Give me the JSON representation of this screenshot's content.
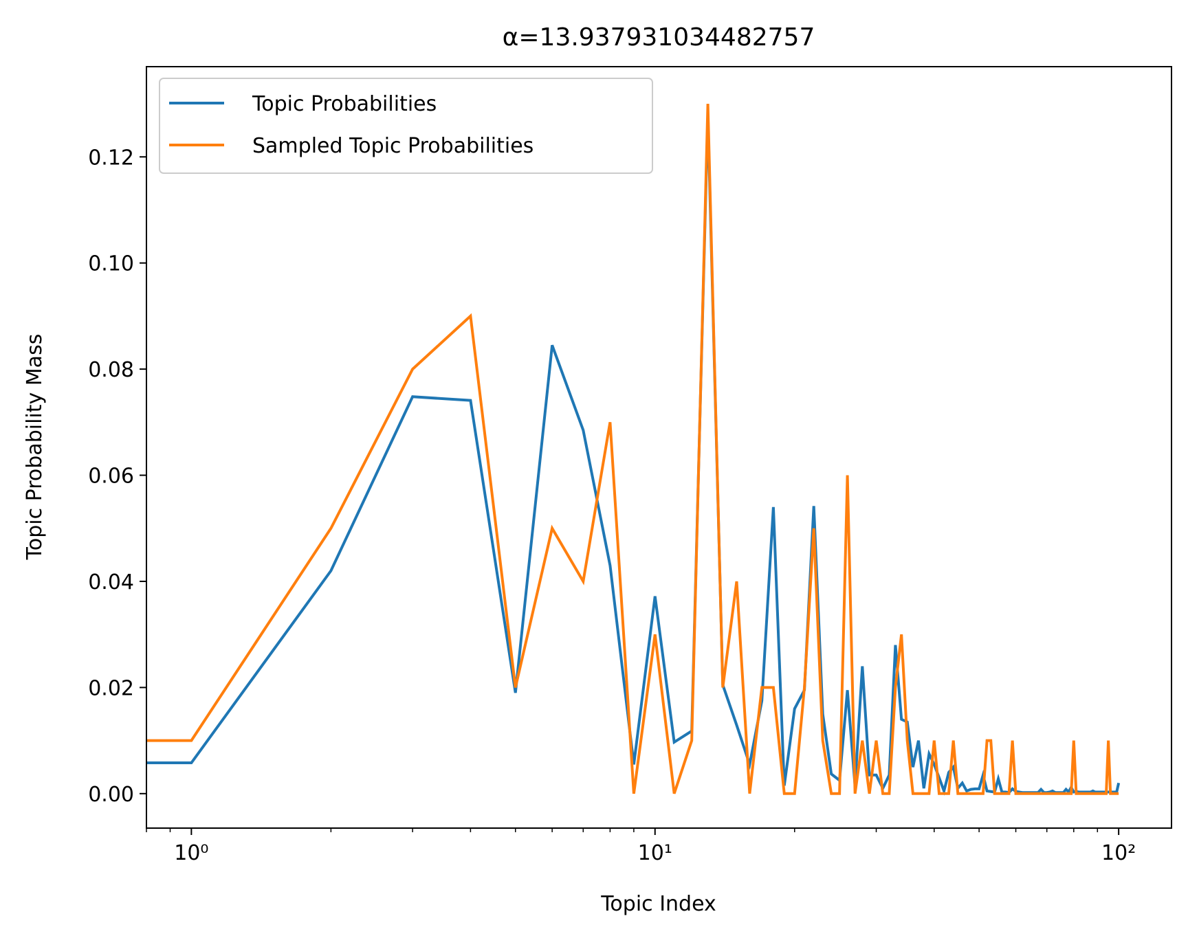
{
  "chart_data": {
    "type": "line",
    "title": "α=13.937931034482757",
    "xlabel": "Topic Index",
    "ylabel": "Topic Probability Mass",
    "xscale": "log",
    "xlim": [
      0.8,
      130
    ],
    "ylim": [
      -0.0065,
      0.137
    ],
    "x_ticks": [
      {
        "value": 1,
        "label": "10⁰"
      },
      {
        "value": 10,
        "label": "10¹"
      },
      {
        "value": 100,
        "label": "10²"
      }
    ],
    "y_ticks": [
      {
        "value": 0.0,
        "label": "0.00"
      },
      {
        "value": 0.02,
        "label": "0.02"
      },
      {
        "value": 0.04,
        "label": "0.04"
      },
      {
        "value": 0.06,
        "label": "0.06"
      },
      {
        "value": 0.08,
        "label": "0.08"
      },
      {
        "value": 0.1,
        "label": "0.10"
      },
      {
        "value": 0.12,
        "label": "0.12"
      }
    ],
    "grid": false,
    "legend_position": "upper-left",
    "series": [
      {
        "name": "Topic Probabilities",
        "color": "#1f77b4",
        "x": [
          0,
          1,
          2,
          3,
          4,
          5,
          6,
          7,
          8,
          9,
          10,
          11,
          12,
          13,
          14,
          15,
          16,
          17,
          18,
          19,
          20,
          21,
          22,
          23,
          24,
          25,
          26,
          27,
          28,
          29,
          30,
          31,
          32,
          33,
          34,
          35,
          36,
          37,
          38,
          39,
          40,
          41,
          42,
          43,
          44,
          45,
          46,
          47,
          48,
          49,
          50,
          51,
          52,
          53,
          54,
          55,
          56,
          57,
          58,
          59,
          60,
          61,
          62,
          63,
          64,
          65,
          66,
          67,
          68,
          69,
          70,
          71,
          72,
          73,
          74,
          75,
          76,
          77,
          78,
          79,
          80,
          81,
          82,
          83,
          84,
          85,
          86,
          87,
          88,
          89,
          90,
          91,
          92,
          93,
          94,
          95,
          96,
          97,
          98,
          99,
          100
        ],
        "values": [
          0.0058,
          0.0058,
          0.042,
          0.0748,
          0.0741,
          0.019,
          0.0845,
          0.0685,
          0.043,
          0.0055,
          0.0372,
          0.0097,
          0.0118,
          0.128,
          0.0205,
          0.0129,
          0.0055,
          0.0175,
          0.054,
          0.0015,
          0.016,
          0.0195,
          0.0542,
          0.015,
          0.0037,
          0.0025,
          0.0195,
          0.0015,
          0.024,
          0.0035,
          0.0035,
          0.001,
          0.0035,
          0.028,
          0.014,
          0.0135,
          0.005,
          0.01,
          0.001,
          0.0075,
          0.0055,
          0.003,
          0.0005,
          0.004,
          0.005,
          0.001,
          0.002,
          0.0005,
          0.0008,
          0.0009,
          0.0009,
          0.0035,
          0.0005,
          0.0004,
          0.0003,
          0.0028,
          0.0003,
          0.0003,
          0.0002,
          0.0009,
          0.0004,
          0.0003,
          0.0002,
          0.0002,
          0.0002,
          0.0002,
          0.0002,
          0.0002,
          0.0008,
          0.0002,
          0.0002,
          0.0003,
          0.0005,
          0.0002,
          0.0002,
          0.0002,
          0.0002,
          0.0008,
          0.0003,
          0.0012,
          0.0003,
          0.0004,
          0.0003,
          0.0003,
          0.0003,
          0.0003,
          0.0003,
          0.0003,
          0.0005,
          0.0003,
          0.0003,
          0.0003,
          0.0003,
          0.0003,
          0.0003,
          0.0003,
          0.0003,
          0.0003,
          0.0003,
          0.0003,
          0.002
        ]
      },
      {
        "name": "Sampled Topic Probabilities",
        "color": "#ff7f0e",
        "x": [
          0,
          1,
          2,
          3,
          4,
          5,
          6,
          7,
          8,
          9,
          10,
          11,
          12,
          13,
          14,
          15,
          16,
          17,
          18,
          19,
          20,
          21,
          22,
          23,
          24,
          25,
          26,
          27,
          28,
          29,
          30,
          31,
          32,
          33,
          34,
          35,
          36,
          37,
          38,
          39,
          40,
          41,
          42,
          43,
          44,
          45,
          46,
          47,
          48,
          49,
          50,
          51,
          52,
          53,
          54,
          55,
          56,
          57,
          58,
          59,
          60,
          61,
          62,
          63,
          64,
          65,
          66,
          67,
          68,
          69,
          70,
          71,
          72,
          73,
          74,
          75,
          76,
          77,
          78,
          79,
          80,
          81,
          82,
          83,
          84,
          85,
          86,
          87,
          88,
          89,
          90,
          91,
          92,
          93,
          94,
          95,
          96,
          97,
          98,
          99,
          100
        ],
        "values": [
          0.01,
          0.01,
          0.05,
          0.08,
          0.09,
          0.02,
          0.05,
          0.04,
          0.07,
          0.0,
          0.03,
          0.0,
          0.01,
          0.13,
          0.02,
          0.04,
          0.0,
          0.02,
          0.02,
          0.0,
          0.0,
          0.02,
          0.05,
          0.01,
          0.0,
          0.0,
          0.06,
          0.0,
          0.01,
          0.0,
          0.01,
          0.0,
          0.0,
          0.02,
          0.03,
          0.01,
          0.0,
          0.0,
          0.0,
          0.0,
          0.01,
          0.0,
          0.0,
          0.0,
          0.01,
          0.0,
          0.0,
          0.0,
          0.0,
          0.0,
          0.0,
          0.0,
          0.01,
          0.01,
          0.0,
          0.0,
          0.0,
          0.0,
          0.0,
          0.01,
          0.0,
          0.0,
          0.0,
          0.0,
          0.0,
          0.0,
          0.0,
          0.0,
          0.0,
          0.0,
          0.0,
          0.0,
          0.0,
          0.0,
          0.0,
          0.0,
          0.0,
          0.0,
          0.0,
          0.0,
          0.01,
          0.0,
          0.0,
          0.0,
          0.0,
          0.0,
          0.0,
          0.0,
          0.0,
          0.0,
          0.0,
          0.0,
          0.0,
          0.0,
          0.0,
          0.01,
          0.0,
          0.0,
          0.0,
          0.0,
          0.0
        ]
      }
    ]
  }
}
